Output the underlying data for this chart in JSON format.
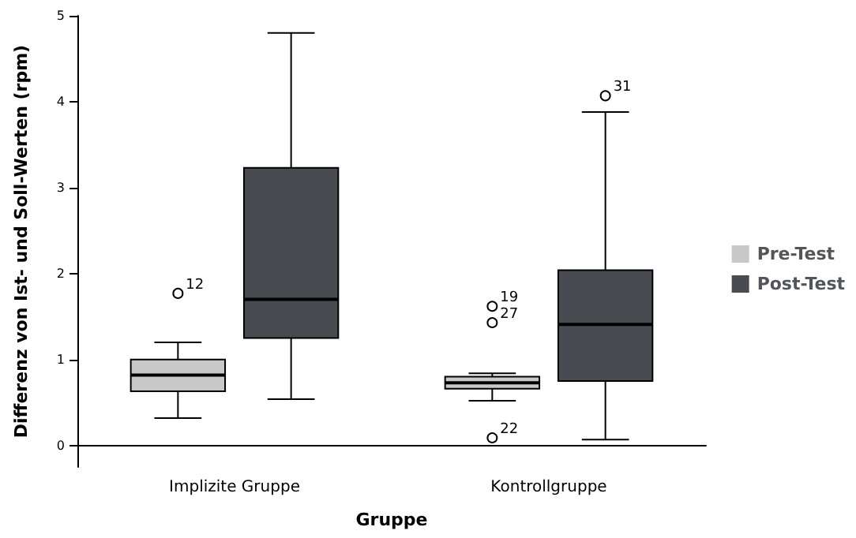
{
  "chart_data": {
    "type": "box",
    "xlabel": "Gruppe",
    "ylabel": "Differenz von Ist- und Soll-Werten (rpm)",
    "categories": [
      "Implizite Gruppe",
      "Kontrollgruppe"
    ],
    "series": [
      {
        "name": "Pre-Test",
        "color": "#c8c8c8",
        "boxes": [
          {
            "low": 0.32,
            "q1": 0.63,
            "median": 0.82,
            "q3": 1.0,
            "high": 1.2,
            "outliers": [
              1.77
            ]
          },
          {
            "low": 0.52,
            "q1": 0.66,
            "median": 0.73,
            "q3": 0.8,
            "high": 0.84,
            "outliers": [
              1.62,
              1.43,
              0.09
            ]
          }
        ]
      },
      {
        "name": "Post-Test",
        "color": "#484b4f",
        "boxes": [
          {
            "low": 0.54,
            "q1": 1.25,
            "median": 1.7,
            "q3": 3.23,
            "high": 4.8
          },
          {
            "low": 0.07,
            "q1": 0.75,
            "median": 1.41,
            "q3": 2.04,
            "high": 3.88,
            "outliers": [
              4.07
            ]
          }
        ]
      }
    ],
    "annotations": [
      "12",
      "19",
      "27",
      "22",
      "31"
    ],
    "ylim": [
      -0.25,
      5
    ],
    "yticks": [
      0,
      1,
      2,
      3,
      4,
      5
    ],
    "grid": false,
    "legend": "right",
    "marker": "circle"
  }
}
